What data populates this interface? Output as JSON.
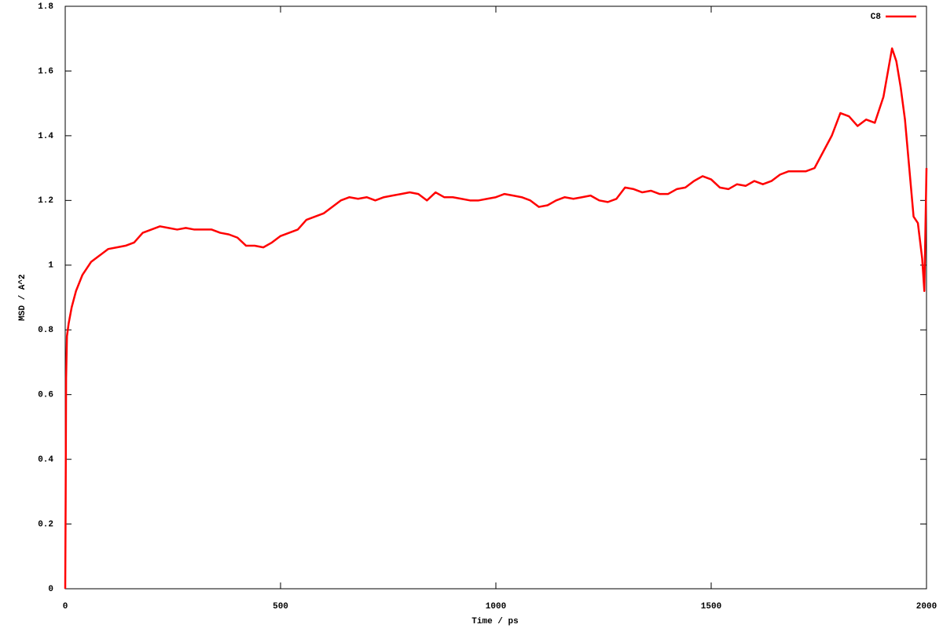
{
  "chart_data": {
    "type": "line",
    "x_label": "Time / ps",
    "y_label": "MSD / A^2",
    "xlim": [
      0,
      2000
    ],
    "xticks": [
      0,
      500,
      1000,
      1500,
      2000
    ],
    "ylim": [
      0,
      1.8
    ],
    "yticks": [
      0,
      0.2,
      0.4,
      0.6,
      0.8,
      1,
      1.2,
      1.4,
      1.6,
      1.8
    ],
    "legend": "top-right",
    "x": [
      0,
      1,
      2,
      4,
      8,
      15,
      25,
      40,
      60,
      80,
      100,
      120,
      140,
      160,
      180,
      200,
      220,
      240,
      260,
      280,
      300,
      320,
      340,
      360,
      380,
      400,
      420,
      440,
      460,
      480,
      500,
      520,
      540,
      560,
      580,
      600,
      620,
      640,
      660,
      680,
      700,
      720,
      740,
      760,
      780,
      800,
      820,
      840,
      860,
      880,
      900,
      920,
      940,
      960,
      980,
      1000,
      1020,
      1040,
      1060,
      1080,
      1100,
      1120,
      1140,
      1160,
      1180,
      1200,
      1220,
      1240,
      1260,
      1280,
      1300,
      1320,
      1340,
      1360,
      1380,
      1400,
      1420,
      1440,
      1460,
      1480,
      1500,
      1520,
      1540,
      1560,
      1580,
      1600,
      1620,
      1640,
      1660,
      1680,
      1700,
      1720,
      1740,
      1760,
      1780,
      1800,
      1820,
      1840,
      1860,
      1880,
      1900,
      1920,
      1930,
      1940,
      1950,
      1960,
      1970,
      1980,
      1990,
      1995,
      2000
    ],
    "series": [
      {
        "name": "C8",
        "color": "#ff0000",
        "values": [
          0,
          0.28,
          0.65,
          0.78,
          0.82,
          0.87,
          0.92,
          0.97,
          1.01,
          1.03,
          1.05,
          1.055,
          1.06,
          1.07,
          1.1,
          1.11,
          1.12,
          1.115,
          1.11,
          1.115,
          1.11,
          1.11,
          1.11,
          1.1,
          1.095,
          1.085,
          1.06,
          1.06,
          1.055,
          1.07,
          1.09,
          1.1,
          1.11,
          1.14,
          1.15,
          1.16,
          1.18,
          1.2,
          1.21,
          1.205,
          1.21,
          1.2,
          1.21,
          1.215,
          1.22,
          1.225,
          1.22,
          1.2,
          1.225,
          1.21,
          1.21,
          1.205,
          1.2,
          1.2,
          1.205,
          1.21,
          1.22,
          1.215,
          1.21,
          1.2,
          1.18,
          1.185,
          1.2,
          1.21,
          1.205,
          1.21,
          1.215,
          1.2,
          1.195,
          1.205,
          1.24,
          1.235,
          1.225,
          1.23,
          1.22,
          1.22,
          1.235,
          1.24,
          1.26,
          1.275,
          1.265,
          1.24,
          1.235,
          1.25,
          1.245,
          1.26,
          1.25,
          1.26,
          1.28,
          1.29,
          1.29,
          1.29,
          1.3,
          1.35,
          1.4,
          1.47,
          1.46,
          1.43,
          1.45,
          1.44,
          1.52,
          1.67,
          1.63,
          1.55,
          1.45,
          1.3,
          1.15,
          1.13,
          1.02,
          0.92,
          1.3
        ]
      }
    ]
  }
}
